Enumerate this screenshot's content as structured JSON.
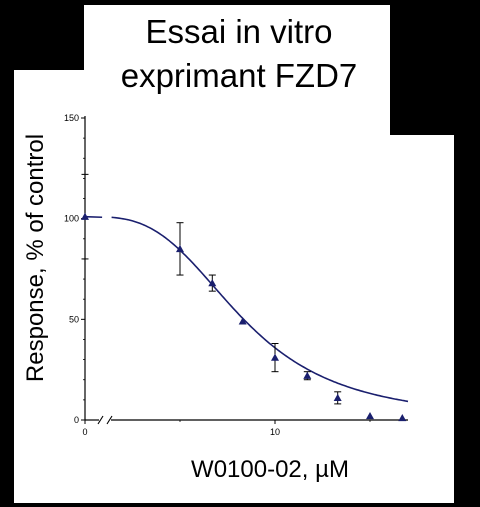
{
  "chart_data": {
    "type": "scatter",
    "title": "Essai in vitro\nexprimant FZD7",
    "title_lines": [
      "Essai in vitro",
      "exprimant FZD7"
    ],
    "xlabel": "W0100-02, µM",
    "ylabel": "Response,  % of control",
    "xlim": [
      0,
      17
    ],
    "ylim": [
      0,
      150
    ],
    "x_axis_break": true,
    "y_ticks": [
      "0",
      "50",
      "100",
      "150"
    ],
    "x_ticks": [
      "0",
      "10"
    ],
    "series": [
      {
        "marker": "triangle",
        "color": "#1a1f6e",
        "points": [
          {
            "x": 0,
            "y": 101,
            "err": 21
          },
          {
            "x": 5,
            "y": 85,
            "err": 13
          },
          {
            "x": 6.7,
            "y": 68,
            "err": 4
          },
          {
            "x": 8.3,
            "y": 49,
            "err": 0
          },
          {
            "x": 10,
            "y": 31,
            "err": 7
          },
          {
            "x": 11.7,
            "y": 22,
            "err": 2
          },
          {
            "x": 13.3,
            "y": 11,
            "err": 3
          },
          {
            "x": 15,
            "y": 2,
            "err": 0
          },
          {
            "x": 16.7,
            "y": 1,
            "err": 0
          }
        ]
      }
    ],
    "fit_curve": {
      "top": 101,
      "bottom": 0,
      "ic50": 8.3,
      "hill": 3.2
    },
    "grid": false,
    "legend": "none"
  }
}
